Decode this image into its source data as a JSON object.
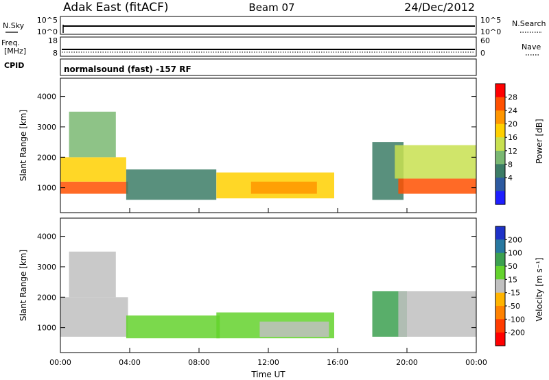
{
  "header": {
    "station": "Adak East (fitACF)",
    "beam": "Beam 07",
    "date": "24/Dec/2012"
  },
  "noise_panel": {
    "left_label": "N.Sky",
    "right_label": "N.Search",
    "left_ticks": [
      "10^5",
      "10^0"
    ],
    "right_ticks": [
      "10^5",
      "10^0"
    ]
  },
  "freq_panel": {
    "left_label_1": "Freq.",
    "left_label_2": "[MHz]",
    "right_label": "Nave",
    "left_ticks": [
      "18",
      "8"
    ],
    "right_ticks": [
      "60",
      "0"
    ]
  },
  "cpid_panel": {
    "label": "CPID",
    "text": "normalsound (fast) -157 RF"
  },
  "axes": {
    "ylabel": "Slant Range [km]",
    "yticks": [
      "4000",
      "3000",
      "2000",
      "1000"
    ],
    "xlabel": "Time UT",
    "xticks": [
      "00:00",
      "04:00",
      "08:00",
      "12:00",
      "16:00",
      "20:00",
      "00:00"
    ]
  },
  "colorbars": {
    "power": {
      "label": "Power [dB]",
      "ticks": [
        "28",
        "24",
        "20",
        "16",
        "12",
        "8",
        "4"
      ],
      "colors": [
        "#ff0000",
        "#ff5000",
        "#ff9600",
        "#ffd000",
        "#c8e050",
        "#7ab872",
        "#3c7c66",
        "#2d5aa0",
        "#1e1eff"
      ]
    },
    "velocity": {
      "label": "Velocity [m s⁻¹]",
      "ticks": [
        "200",
        "100",
        "50",
        "15",
        "-15",
        "-50",
        "-100",
        "-200"
      ],
      "colors": [
        "#1e32c8",
        "#2878a0",
        "#3ca050",
        "#64d22d",
        "#c0c0c0",
        "#ffb400",
        "#ff8200",
        "#ff3c00",
        "#ff0000"
      ]
    }
  },
  "chart_data": [
    {
      "type": "heatmap",
      "title": "Power",
      "xlabel": "Time UT",
      "ylabel": "Slant Range [km]",
      "xlim": [
        0,
        24
      ],
      "ylim": [
        180,
        4600
      ],
      "color_scale": [
        0,
        30
      ],
      "regions": [
        {
          "t0": 0.0,
          "t1": 3.9,
          "r0": 800,
          "r1": 1200,
          "value": 28
        },
        {
          "t0": 0.0,
          "t1": 3.8,
          "r0": 1200,
          "r1": 2000,
          "value": 18
        },
        {
          "t0": 0.5,
          "t1": 3.2,
          "r0": 2000,
          "r1": 3500,
          "value": 12
        },
        {
          "t0": 3.8,
          "t1": 9.0,
          "r0": 600,
          "r1": 1600,
          "value": 8
        },
        {
          "t0": 9.0,
          "t1": 15.8,
          "r0": 650,
          "r1": 1500,
          "value": 20
        },
        {
          "t0": 11.0,
          "t1": 14.8,
          "r0": 800,
          "r1": 1200,
          "value": 24
        },
        {
          "t0": 18.0,
          "t1": 19.8,
          "r0": 600,
          "r1": 2500,
          "value": 8
        },
        {
          "t0": 19.5,
          "t1": 24.0,
          "r0": 800,
          "r1": 1300,
          "value": 28
        },
        {
          "t0": 19.3,
          "t1": 24.0,
          "r0": 1300,
          "r1": 2400,
          "value": 16
        }
      ]
    },
    {
      "type": "heatmap",
      "title": "Velocity",
      "xlabel": "Time UT",
      "ylabel": "Slant Range [km]",
      "xlim": [
        0,
        24
      ],
      "ylim": [
        180,
        4600
      ],
      "color_scale": [
        -250,
        250
      ],
      "regions": [
        {
          "t0": 0.0,
          "t1": 3.9,
          "r0": 700,
          "r1": 2000,
          "value": 0
        },
        {
          "t0": 0.5,
          "t1": 3.2,
          "r0": 2000,
          "r1": 3500,
          "value": 0
        },
        {
          "t0": 3.8,
          "t1": 9.2,
          "r0": 650,
          "r1": 1400,
          "value": 30
        },
        {
          "t0": 9.0,
          "t1": 15.8,
          "r0": 650,
          "r1": 1500,
          "value": 30
        },
        {
          "t0": 11.5,
          "t1": 15.5,
          "r0": 700,
          "r1": 1200,
          "value": 0
        },
        {
          "t0": 18.0,
          "t1": 20.0,
          "r0": 700,
          "r1": 2200,
          "value": 40
        },
        {
          "t0": 19.5,
          "t1": 24.0,
          "r0": 700,
          "r1": 2200,
          "value": 0
        }
      ]
    }
  ]
}
